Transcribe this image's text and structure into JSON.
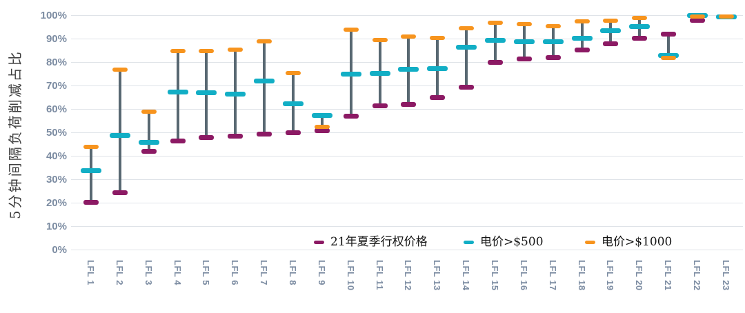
{
  "colors": {
    "background": "#FFFFFF",
    "gridline": "#DFE3E8",
    "axis_text": "#7C8CA2",
    "y_title_text": "#3F3F3F",
    "range_bar": "#586872"
  },
  "chart_data": {
    "type": "scatter",
    "variant": "hi-lo range chart: vertical grey range bar per category with three dash markers",
    "title": "",
    "xlabel": "",
    "ylabel": "5分钟间隔负荷削减占比",
    "ylim": [
      0,
      100
    ],
    "yticks": [
      "0%",
      "10%",
      "20%",
      "30%",
      "40%",
      "50%",
      "60%",
      "70%",
      "80%",
      "90%",
      "100%"
    ],
    "grid": "horizontal",
    "legend_position": "bottom-inside",
    "unit": "percent",
    "categories": [
      "LFL 1",
      "LFL 2",
      "LFL 3",
      "LFL 4",
      "LFL 5",
      "LFL 6",
      "LFL 7",
      "LFL 8",
      "LFL 9",
      "LFL 10",
      "LFL 11",
      "LFL 12",
      "LFL 13",
      "LFL 14",
      "LFL 15",
      "LFL 16",
      "LFL 17",
      "LFL 18",
      "LFL 19",
      "LFL 20",
      "LFL 21",
      "LFL 22",
      "LFL 23"
    ],
    "series": [
      {
        "name": "21年夏季行权价格",
        "color": "#8C1A64",
        "values": [
          20.5,
          24.5,
          42,
          46.5,
          48,
          48.5,
          49.5,
          50,
          51,
          57,
          61.5,
          62,
          65,
          69.5,
          80,
          81.5,
          82,
          85.5,
          88,
          90.5,
          92,
          98,
          99.5
        ]
      },
      {
        "name": "电价>$500",
        "color": "#12AEC5",
        "values": [
          34,
          49,
          46,
          67.5,
          67,
          66.5,
          72,
          62.5,
          57.5,
          75,
          75.5,
          77,
          77.5,
          86.5,
          89.5,
          89,
          89,
          90.5,
          93.5,
          95.5,
          83,
          100,
          99.5
        ]
      },
      {
        "name": "电价>$1000",
        "color": "#F7941E",
        "values": [
          44,
          77,
          59,
          85,
          85,
          85.5,
          89,
          75.5,
          52.5,
          94,
          89.5,
          91,
          90.5,
          94.5,
          97,
          96.5,
          95.5,
          97.5,
          98,
          99,
          82,
          99.5,
          99.5
        ]
      }
    ]
  }
}
